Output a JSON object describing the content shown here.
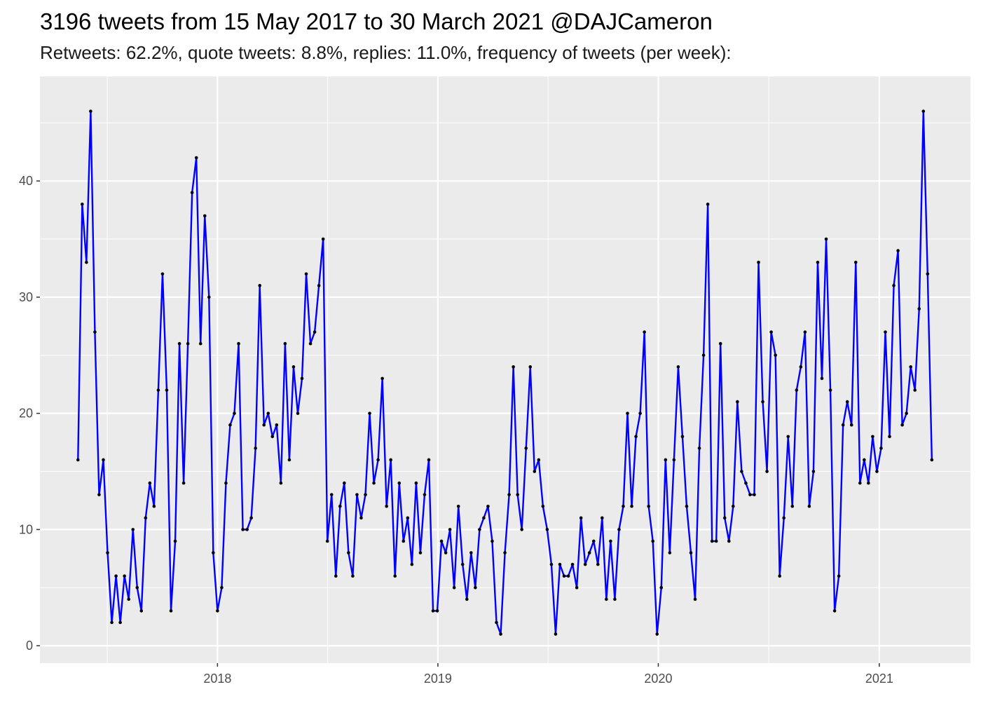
{
  "chart_data": {
    "type": "line",
    "title": "3196 tweets from 15 May 2017 to 30 March 2021 @DAJCameron",
    "subtitle": "Retweets: 62.2%, quote tweets: 8.8%, replies: 11.0%, frequency of tweets (per week):",
    "xlabel": "",
    "ylabel": "",
    "x_start": "2017-05-15",
    "x_interval_days": 7,
    "xlim": [
      "2017-03-13",
      "2021-06-01"
    ],
    "ylim": [
      -1.5,
      49
    ],
    "x_ticks": [
      {
        "label": "2018",
        "date": "2018-01-01"
      },
      {
        "label": "2019",
        "date": "2019-01-01"
      },
      {
        "label": "2020",
        "date": "2020-01-01"
      },
      {
        "label": "2021",
        "date": "2021-01-01"
      }
    ],
    "y_ticks": [
      0,
      10,
      20,
      30,
      40
    ],
    "grid": true,
    "line_color": "#0000ff",
    "point_color": "#000000",
    "panel_color": "#ebebeb",
    "values": [
      16,
      38,
      33,
      46,
      27,
      13,
      16,
      8,
      2,
      6,
      2,
      6,
      4,
      10,
      5,
      3,
      11,
      14,
      12,
      22,
      32,
      22,
      3,
      9,
      26,
      14,
      26,
      39,
      42,
      26,
      37,
      30,
      8,
      3,
      5,
      14,
      19,
      20,
      26,
      10,
      10,
      11,
      17,
      31,
      19,
      20,
      18,
      19,
      14,
      26,
      16,
      24,
      20,
      23,
      32,
      26,
      27,
      31,
      35,
      9,
      13,
      6,
      12,
      14,
      8,
      6,
      13,
      11,
      13,
      20,
      14,
      16,
      23,
      12,
      16,
      6,
      14,
      9,
      11,
      7,
      14,
      8,
      13,
      16,
      3,
      3,
      9,
      8,
      10,
      5,
      12,
      7,
      4,
      8,
      5,
      10,
      11,
      12,
      9,
      2,
      1,
      8,
      13,
      24,
      13,
      10,
      17,
      24,
      15,
      16,
      12,
      10,
      7,
      1,
      7,
      6,
      6,
      7,
      5,
      11,
      7,
      8,
      9,
      7,
      11,
      4,
      9,
      4,
      10,
      12,
      20,
      12,
      18,
      20,
      27,
      12,
      9,
      1,
      5,
      16,
      8,
      16,
      24,
      18,
      12,
      8,
      4,
      17,
      25,
      38,
      9,
      9,
      26,
      11,
      9,
      12,
      21,
      15,
      14,
      13,
      13,
      33,
      21,
      15,
      27,
      25,
      6,
      11,
      18,
      12,
      22,
      24,
      27,
      12,
      15,
      33,
      23,
      35,
      22,
      3,
      6,
      19,
      21,
      19,
      33,
      14,
      16,
      14,
      18,
      15,
      17,
      27,
      18,
      31,
      34,
      19,
      20,
      24,
      22,
      29,
      46,
      32,
      16
    ]
  }
}
